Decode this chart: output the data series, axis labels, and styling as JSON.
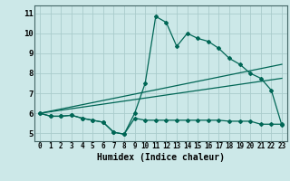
{
  "xlabel": "Humidex (Indice chaleur)",
  "bg_color": "#cce8e8",
  "grid_color": "#aacccc",
  "line_color": "#006655",
  "xlim": [
    -0.5,
    23.5
  ],
  "ylim": [
    4.6,
    11.4
  ],
  "xticks": [
    0,
    1,
    2,
    3,
    4,
    5,
    6,
    7,
    8,
    9,
    10,
    11,
    12,
    13,
    14,
    15,
    16,
    17,
    18,
    19,
    20,
    21,
    22,
    23
  ],
  "yticks": [
    5,
    6,
    7,
    8,
    9,
    10,
    11
  ],
  "line1_x": [
    0,
    1,
    2,
    3,
    4,
    5,
    6,
    7,
    8,
    9,
    10,
    11,
    12,
    13,
    14,
    15,
    16,
    17,
    18,
    19,
    20,
    21,
    22,
    23
  ],
  "line1_y": [
    6.0,
    5.85,
    5.85,
    5.9,
    5.75,
    5.65,
    5.55,
    5.05,
    4.95,
    6.0,
    7.5,
    10.85,
    10.55,
    9.35,
    10.0,
    9.75,
    9.6,
    9.25,
    8.75,
    8.45,
    8.0,
    7.75,
    7.15,
    5.4
  ],
  "line2_x": [
    0,
    23
  ],
  "line2_y": [
    6.0,
    8.45
  ],
  "line3_x": [
    0,
    23
  ],
  "line3_y": [
    6.0,
    7.75
  ],
  "line4_x": [
    0,
    1,
    2,
    3,
    4,
    5,
    6,
    7,
    8,
    9,
    10,
    11,
    12,
    13,
    14,
    15,
    16,
    17,
    18,
    19,
    20,
    21,
    22,
    23
  ],
  "line4_y": [
    6.0,
    5.85,
    5.85,
    5.9,
    5.75,
    5.65,
    5.55,
    5.05,
    4.95,
    5.75,
    5.65,
    5.65,
    5.65,
    5.65,
    5.65,
    5.65,
    5.65,
    5.65,
    5.6,
    5.6,
    5.6,
    5.45,
    5.45,
    5.45
  ]
}
